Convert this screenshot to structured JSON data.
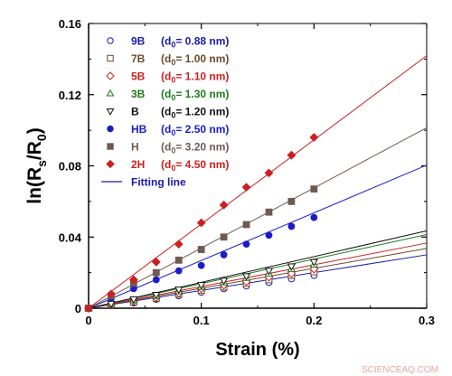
{
  "chart_data": {
    "type": "scatter",
    "xlabel": "Strain (%)",
    "ylabel": "ln(R",
    "ylabel_sub1": "s",
    "ylabel_mid": "/R",
    "ylabel_sub2": "0",
    "ylabel_end": ")",
    "xlim": [
      0,
      0.3
    ],
    "ylim": [
      0,
      0.16
    ],
    "x_ticks": [
      "0",
      "0.1",
      "0.2",
      "0.3"
    ],
    "y_ticks": [
      "0",
      "0.04",
      "0.08",
      "0.12",
      "0.16"
    ],
    "x_tick_values": [
      0,
      0.1,
      0.2,
      0.3
    ],
    "y_tick_values": [
      0,
      0.04,
      0.08,
      0.12,
      0.16
    ],
    "x": [
      0,
      0.02,
      0.04,
      0.06,
      0.08,
      0.1,
      0.12,
      0.14,
      0.16,
      0.18,
      0.2
    ],
    "series": [
      {
        "name": "9B",
        "d0": "(d",
        "d0_sub": "0",
        "d0_val": "= 0.88 nm)",
        "color": "#1a1aa6",
        "marker": "circle-open",
        "values": [
          0,
          0.0015,
          0.003,
          0.005,
          0.007,
          0.009,
          0.011,
          0.0125,
          0.0145,
          0.0165,
          0.0185
        ],
        "fit_slope": 0.1
      },
      {
        "name": "7B",
        "d0": "(d",
        "d0_sub": "0",
        "d0_val": "= 1.00 nm)",
        "color": "#6b4a2a",
        "marker": "square-open",
        "values": [
          0,
          0.002,
          0.0035,
          0.0055,
          0.008,
          0.01,
          0.012,
          0.014,
          0.016,
          0.0185,
          0.0205
        ],
        "fit_slope": 0.112
      },
      {
        "name": "5B",
        "d0": "(d",
        "d0_sub": "0",
        "d0_val": "= 1.10 nm)",
        "color": "#cc2222",
        "marker": "diamond-open",
        "values": [
          0,
          0.002,
          0.004,
          0.006,
          0.0085,
          0.011,
          0.013,
          0.015,
          0.0175,
          0.0195,
          0.022
        ],
        "fit_slope": 0.122
      },
      {
        "name": "3B",
        "d0": "(d",
        "d0_sub": "0",
        "d0_val": "= 1.30 nm)",
        "color": "#1f7a1f",
        "marker": "triangle-up-open",
        "values": [
          0,
          0.0025,
          0.0045,
          0.007,
          0.0095,
          0.012,
          0.0145,
          0.017,
          0.0195,
          0.022,
          0.0245
        ],
        "fit_slope": 0.138
      },
      {
        "name": "B",
        "d0": "(d",
        "d0_sub": "0",
        "d0_val": "= 1.20 nm)",
        "color": "#111111",
        "marker": "triangle-down-open",
        "values": [
          0,
          0.0025,
          0.005,
          0.0075,
          0.0105,
          0.013,
          0.0155,
          0.018,
          0.021,
          0.0235,
          0.026
        ],
        "fit_slope": 0.145
      },
      {
        "name": "HB",
        "d0": "(d",
        "d0_sub": "0",
        "d0_val": "= 2.50 nm)",
        "color": "#1c1cc8",
        "marker": "circle-filled",
        "values": [
          0,
          0.0055,
          0.011,
          0.016,
          0.021,
          0.024,
          0.03,
          0.036,
          0.041,
          0.046,
          0.051
        ],
        "fit_slope": 0.268
      },
      {
        "name": "H",
        "d0": "(d",
        "d0_sub": "0",
        "d0_val": "= 3.20 nm)",
        "color": "#6e5a52",
        "marker": "square-filled",
        "values": [
          0,
          0.007,
          0.014,
          0.02,
          0.027,
          0.033,
          0.04,
          0.047,
          0.054,
          0.06,
          0.067
        ],
        "fit_slope": 0.338
      },
      {
        "name": "2H",
        "d0": "(d",
        "d0_sub": "0",
        "d0_val": "= 4.50 nm)",
        "color": "#cc2020",
        "marker": "diamond-filled",
        "values": [
          0,
          0.008,
          0.016,
          0.026,
          0.036,
          0.048,
          0.058,
          0.068,
          0.076,
          0.086,
          0.096
        ],
        "fit_slope": 0.473
      }
    ],
    "fit_legend": {
      "label": "Fitting line",
      "color": "#1a1aa6"
    },
    "legend_position": "top-left",
    "grid": false
  },
  "watermark": "SCIENCEAQ.COM"
}
